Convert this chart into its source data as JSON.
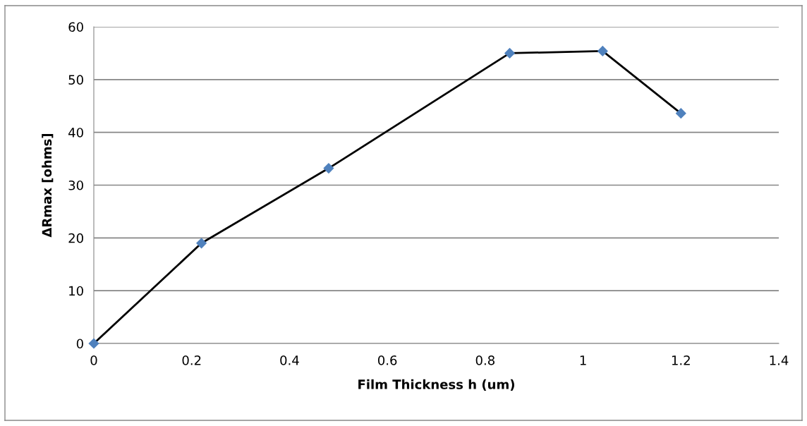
{
  "chart_data": {
    "type": "line",
    "xlabel": "Film Thickness h (um)",
    "ylabel": "ΔRmax [ohms]",
    "x": [
      0,
      0.22,
      0.48,
      0.85,
      1.04,
      1.2
    ],
    "series": [
      {
        "color": "#000000",
        "colors": [
          "#4f81bd",
          "#4f81bd",
          "#4f81bd",
          "#4f81bd",
          "#4f81bd",
          "#4f81bd"
        ],
        "values": [
          0,
          19.0,
          33.2,
          55.0,
          55.4,
          43.6
        ]
      }
    ],
    "marker": "diamond",
    "line_style": "solid",
    "xlim": [
      0,
      1.4
    ],
    "xticks": [
      0,
      {
        "value": 0.2,
        "label": "0.2"
      },
      {
        "value": 0.4,
        "label": "0.4"
      },
      {
        "value": 0.6,
        "label": "0.6"
      },
      {
        "value": 0.8,
        "label": "0.8"
      },
      1,
      {
        "value": 1.2,
        "label": "1.2"
      },
      {
        "value": 1.4,
        "label": "1.4"
      }
    ],
    "ylim": [
      0,
      60
    ],
    "yticks": [
      0,
      10,
      20,
      30,
      40,
      50,
      60
    ],
    "grid": "y"
  }
}
